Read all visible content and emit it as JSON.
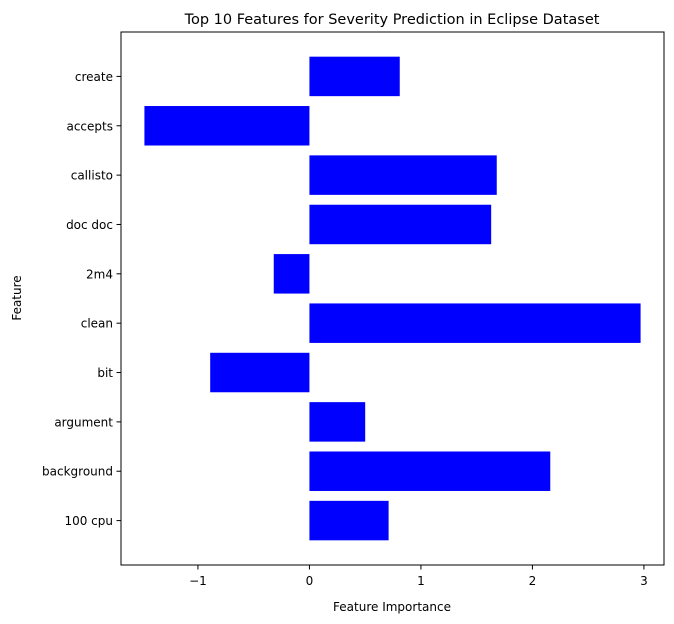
{
  "chart_data": {
    "type": "bar",
    "orientation": "horizontal",
    "title": "Top 10 Features for Severity Prediction in Eclipse Dataset",
    "xlabel": "Feature Importance",
    "ylabel": "Feature",
    "categories": [
      "100 cpu",
      "background",
      "argument",
      "bit",
      "clean",
      "2m4",
      "doc doc",
      "callisto",
      "accepts",
      "create"
    ],
    "values": [
      0.71,
      2.16,
      0.5,
      -0.89,
      2.97,
      -0.32,
      1.63,
      1.68,
      -1.48,
      0.81
    ],
    "xlim": [
      -1.69,
      3.18
    ],
    "xticks": [
      -1,
      0,
      1,
      2,
      3
    ],
    "xtick_labels": [
      "−1",
      "0",
      "1",
      "2",
      "3"
    ],
    "bar_color": "#0000ff",
    "grid": false,
    "legend": "none"
  }
}
